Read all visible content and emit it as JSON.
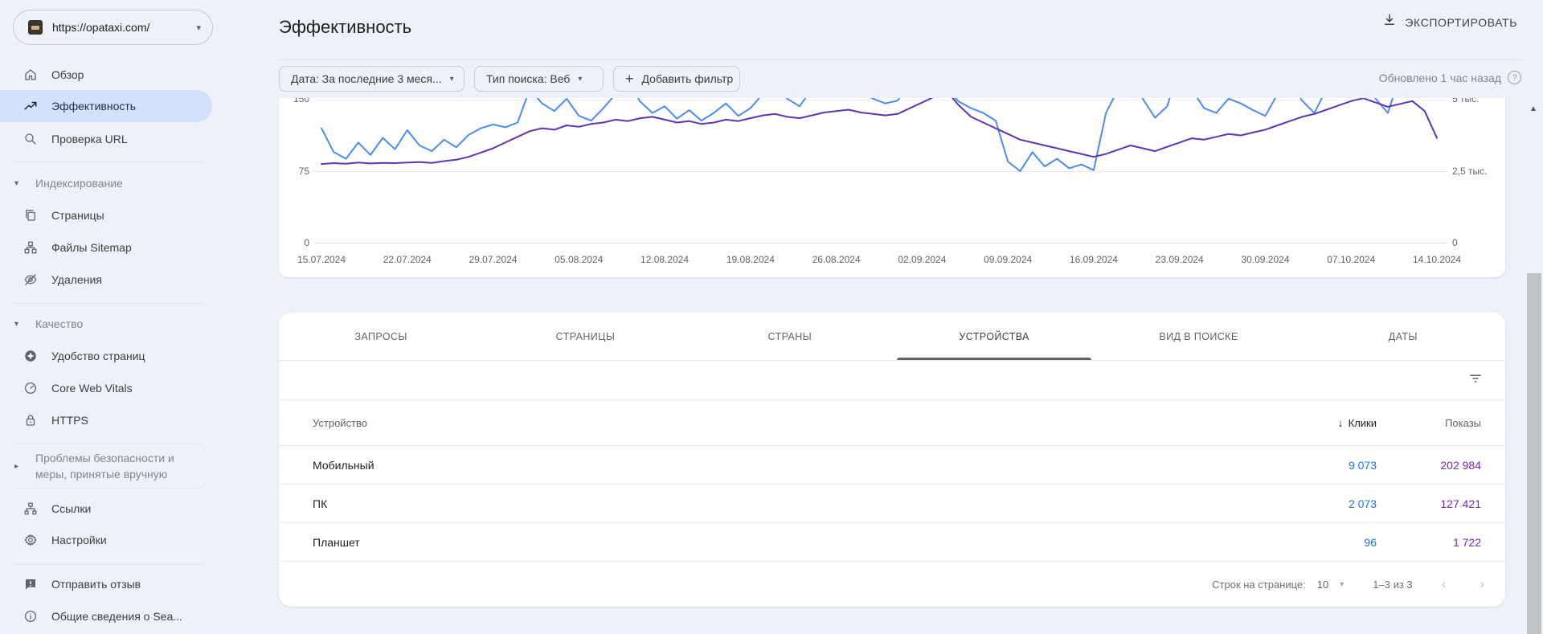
{
  "property_selector": {
    "url": "https://opataxi.com/"
  },
  "sidebar": {
    "items": [
      {
        "label": "Обзор"
      },
      {
        "label": "Эффективность"
      },
      {
        "label": "Проверка URL"
      },
      {
        "label": "Индексирование"
      },
      {
        "label": "Страницы"
      },
      {
        "label": "Файлы Sitemap"
      },
      {
        "label": "Удаления"
      },
      {
        "label": "Качество"
      },
      {
        "label": "Удобство страниц"
      },
      {
        "label": "Core Web Vitals"
      },
      {
        "label": "HTTPS"
      },
      {
        "label": "Проблемы безопасности и меры, принятые вручную"
      },
      {
        "label": "Ссылки"
      },
      {
        "label": "Настройки"
      },
      {
        "label": "Отправить отзыв"
      },
      {
        "label": "Общие сведения о Sea..."
      }
    ]
  },
  "header": {
    "title": "Эффективность",
    "export_label": "ЭКСПОРТИРОВАТЬ",
    "updated": "Обновлено 1 час назад"
  },
  "filters": {
    "date_chip": "Дата: За последние 3 меся...",
    "type_chip": "Тип поиска: Веб",
    "add_chip": "Добавить фильтр"
  },
  "chart_data": {
    "type": "line",
    "title": "",
    "xlabel": "",
    "ylabel_left": "Клики",
    "ylabel_right": "Показы",
    "grid": true,
    "legend_position": "none (scrolled out of view)",
    "x_tick_labels": [
      "15.07.2024",
      "22.07.2024",
      "29.07.2024",
      "05.08.2024",
      "12.08.2024",
      "19.08.2024",
      "26.08.2024",
      "02.09.2024",
      "09.09.2024",
      "16.09.2024",
      "23.09.2024",
      "30.09.2024",
      "07.10.2024",
      "14.10.2024"
    ],
    "left_axis": {
      "ticks": [
        "150",
        "75",
        "0"
      ],
      "max": 150,
      "note": "top tick clipped by scroll"
    },
    "right_axis": {
      "ticks": [
        "5 тыс.",
        "2,5 тыс.",
        "0"
      ],
      "max": 5000
    },
    "series": [
      {
        "name": "Клики",
        "axis": "left",
        "color": "#4c8bf5",
        "values": [
          120,
          95,
          88,
          105,
          92,
          110,
          98,
          118,
          102,
          96,
          108,
          100,
          113,
          120,
          124,
          121,
          126,
          161,
          146,
          138,
          151,
          133,
          128,
          141,
          156,
          171,
          148,
          136,
          143,
          130,
          139,
          128,
          136,
          146,
          133,
          141,
          156,
          166,
          151,
          143,
          161,
          176,
          168,
          173,
          158,
          151,
          146,
          149,
          166,
          181,
          173,
          161,
          148,
          141,
          136,
          128,
          85,
          75,
          95,
          80,
          88,
          78,
          82,
          76,
          136,
          161,
          176,
          151,
          131,
          143,
          186,
          161,
          141,
          136,
          151,
          146,
          139,
          133,
          156,
          171,
          149,
          136,
          161,
          181,
          191,
          171,
          151,
          136,
          176,
          196,
          206,
          216
        ]
      },
      {
        "name": "Показы",
        "axis": "right",
        "color": "#5e35b1",
        "values": [
          2750,
          2780,
          2760,
          2800,
          2770,
          2790,
          2780,
          2800,
          2820,
          2790,
          2850,
          2900,
          3000,
          3150,
          3300,
          3500,
          3700,
          3900,
          4000,
          3950,
          4100,
          4050,
          4150,
          4200,
          4300,
          4250,
          4350,
          4400,
          4300,
          4200,
          4250,
          4150,
          4200,
          4300,
          4250,
          4350,
          4450,
          4500,
          4400,
          4350,
          4450,
          4550,
          4600,
          4650,
          4550,
          4500,
          4450,
          4500,
          4700,
          4900,
          5100,
          5300,
          4800,
          4400,
          4200,
          4000,
          3800,
          3600,
          3500,
          3400,
          3300,
          3200,
          3100,
          3000,
          3100,
          3250,
          3400,
          3300,
          3200,
          3350,
          3500,
          3650,
          3600,
          3700,
          3800,
          3750,
          3850,
          3950,
          4100,
          4250,
          4400,
          4500,
          4650,
          4800,
          4950,
          5050,
          4900,
          4750,
          4850,
          4950,
          4600,
          3660
        ]
      }
    ]
  },
  "tabs": [
    {
      "label": "ЗАПРОСЫ",
      "active": false
    },
    {
      "label": "СТРАНИЦЫ",
      "active": false
    },
    {
      "label": "СТРАНЫ",
      "active": false
    },
    {
      "label": "УСТРОЙСТВА",
      "active": true
    },
    {
      "label": "ВИД В ПОИСКЕ",
      "active": false
    },
    {
      "label": "ДАТЫ",
      "active": false
    }
  ],
  "table": {
    "col_device": "Устройство",
    "col_clicks": "Клики",
    "col_impressions": "Показы",
    "rows": [
      {
        "device": "Мобильный",
        "clicks": "9 073",
        "impressions": "202 984"
      },
      {
        "device": "ПК",
        "clicks": "2 073",
        "impressions": "127 421"
      },
      {
        "device": "Планшет",
        "clicks": "96",
        "impressions": "1 722"
      }
    ]
  },
  "pagination": {
    "rows_label": "Строк на странице:",
    "rows_value": "10",
    "range": "1–3 из 3"
  },
  "colors": {
    "clicks_line": "#4c8bf5",
    "impressions_line": "#5e35b1",
    "clicks_value": "#1a73e8",
    "impressions_value": "#7627bb",
    "selected_nav_bg": "#d4e1fb",
    "page_bg": "#eef1f7"
  }
}
